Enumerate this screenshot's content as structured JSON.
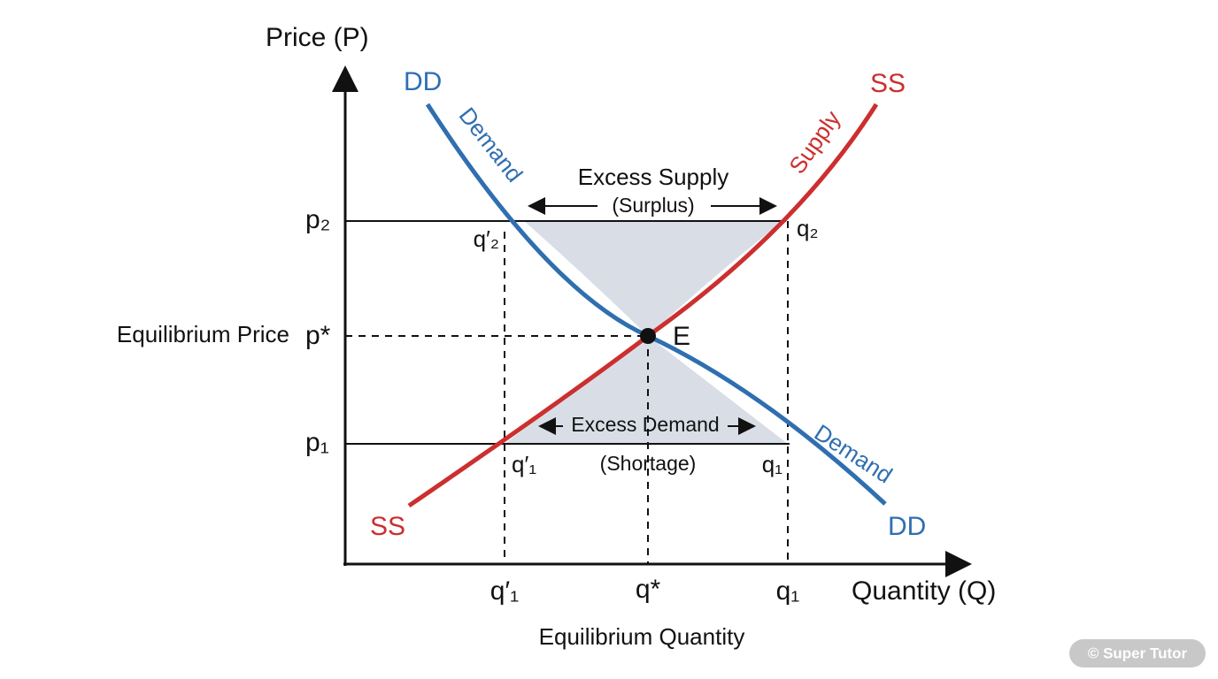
{
  "axes": {
    "y_label": "Price (P)",
    "x_label": "Quantity (Q)"
  },
  "demand": {
    "name_top": "DD",
    "name_bottom": "DD",
    "label_top": "Demand",
    "label_bottom": "Demand"
  },
  "supply": {
    "name_top": "SS",
    "name_bottom": "SS",
    "label": "Supply"
  },
  "price_levels": {
    "p2": "p₂",
    "p_star": "p*",
    "p1": "p₁",
    "equilibrium_price": "Equilibrium Price"
  },
  "quantity_levels": {
    "q1_prime_axis": "q′₁",
    "q_star": "q*",
    "q1_axis": "q₁",
    "equilibrium_quantity": "Equilibrium Quantity",
    "q2_prime": "q′₂",
    "q2": "q₂",
    "q1_prime": "q′₁",
    "q1": "q₁"
  },
  "regions": {
    "surplus_title": "Excess Supply",
    "surplus_note": "(Surplus)",
    "shortage_title": "Excess Demand",
    "shortage_note": "(Shortage)"
  },
  "equilibrium": {
    "label": "E"
  },
  "watermark": "© Super Tutor"
}
